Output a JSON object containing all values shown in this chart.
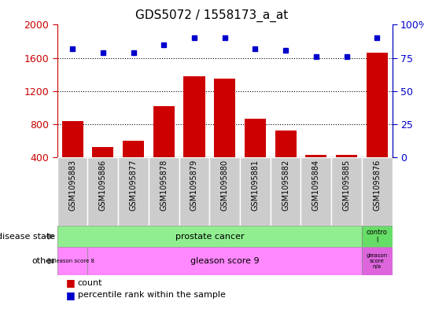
{
  "title": "GDS5072 / 1558173_a_at",
  "samples": [
    "GSM1095883",
    "GSM1095886",
    "GSM1095877",
    "GSM1095878",
    "GSM1095879",
    "GSM1095880",
    "GSM1095881",
    "GSM1095882",
    "GSM1095884",
    "GSM1095885",
    "GSM1095876"
  ],
  "counts": [
    840,
    530,
    600,
    1020,
    1380,
    1350,
    870,
    730,
    430,
    430,
    1660
  ],
  "percentile_ranks": [
    82,
    79,
    79,
    85,
    90,
    90,
    82,
    81,
    76,
    76,
    90
  ],
  "ylim_left": [
    400,
    2000
  ],
  "ylim_right": [
    0,
    100
  ],
  "left_yticks": [
    400,
    800,
    1200,
    1600,
    2000
  ],
  "right_yticks": [
    0,
    25,
    50,
    75,
    100
  ],
  "bar_color": "#cc0000",
  "dot_color": "#0000cc",
  "bg_color": "#ffffff",
  "tick_bg_color": "#cccccc",
  "ds_color": "#90ee90",
  "other_color": "#ff88ff",
  "ds_control_color": "#66dd66",
  "other_na_color": "#dd66dd",
  "hline_vals": [
    800,
    1200,
    1600
  ],
  "bar_width": 0.7
}
